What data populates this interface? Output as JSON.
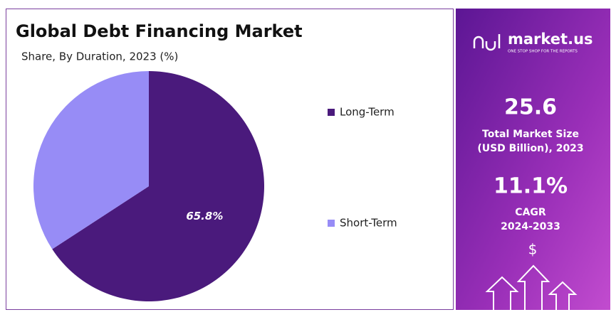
{
  "chart_data": {
    "type": "pie",
    "title": "Global Debt Financing Market",
    "subtitle": "Share, By Duration, 2023 (%)",
    "categories": [
      "Long-Term",
      "Short-Term"
    ],
    "values": [
      65.8,
      34.2
    ],
    "value_labels": [
      "65.8%",
      null
    ],
    "colors": [
      "#4a1a7c",
      "#978cf6"
    ]
  },
  "sidebar": {
    "brand": "market.us",
    "tagline": "ONE STOP SHOP FOR THE REPORTS",
    "market_size": "25.6",
    "market_size_label": [
      "Total Market Size",
      "(USD Billion), 2023"
    ],
    "cagr": "11.1%",
    "cagr_label": [
      "CAGR",
      "2024-2033"
    ],
    "currency": "$"
  }
}
